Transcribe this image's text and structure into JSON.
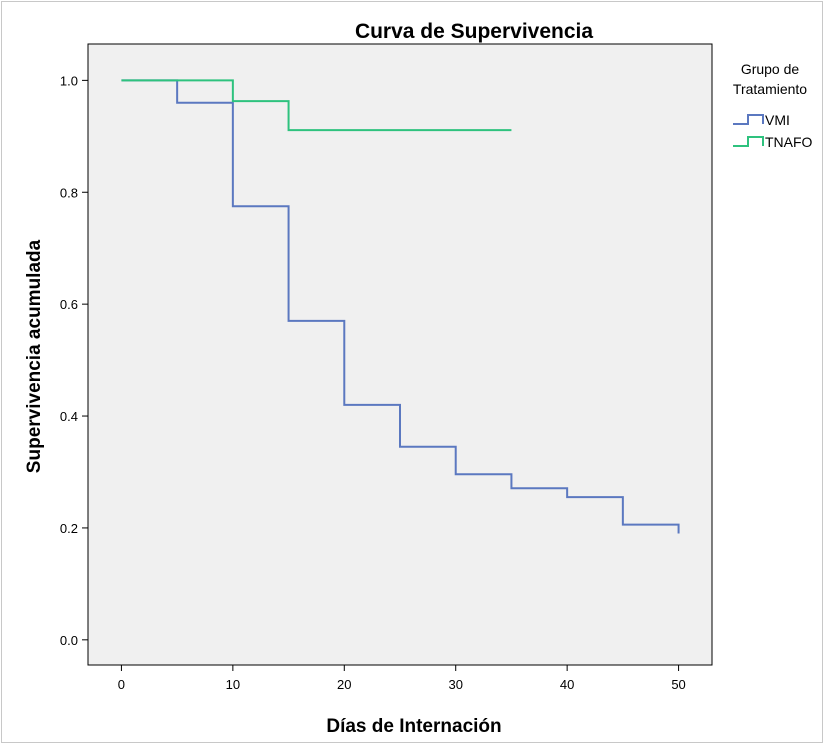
{
  "chart_data": {
    "type": "line",
    "step": true,
    "title": "Curva de Supervivencia",
    "xlabel": "Días de Internación",
    "ylabel": "Supervivencia acumulada",
    "xlim": [
      -3,
      53
    ],
    "ylim": [
      -0.045,
      1.065
    ],
    "xticks": [
      0,
      10,
      20,
      30,
      40,
      50
    ],
    "yticks": [
      0.0,
      0.2,
      0.4,
      0.6,
      0.8,
      1.0
    ],
    "xtick_labels": [
      "0",
      "10",
      "20",
      "30",
      "40",
      "50"
    ],
    "ytick_labels": [
      "0.0",
      "0.2",
      "0.4",
      "0.6",
      "0.8",
      "1.0"
    ],
    "grid": false,
    "background": "#f0f0f0",
    "legend": {
      "title": "Grupo de Tratamiento",
      "title_lines": [
        "Grupo de",
        "Tratamiento"
      ],
      "position": "right"
    },
    "series": [
      {
        "name": "VMI",
        "color": "#5b78c0",
        "x": [
          0,
          5,
          10,
          15,
          20,
          25,
          30,
          35,
          40,
          45,
          50
        ],
        "y": [
          1.0,
          0.96,
          0.775,
          0.57,
          0.42,
          0.345,
          0.296,
          0.271,
          0.255,
          0.206,
          0.19
        ]
      },
      {
        "name": "TNAFO",
        "color": "#2ec27e",
        "x": [
          0,
          10,
          15,
          35
        ],
        "y": [
          1.0,
          0.963,
          0.911,
          0.911
        ]
      }
    ]
  }
}
